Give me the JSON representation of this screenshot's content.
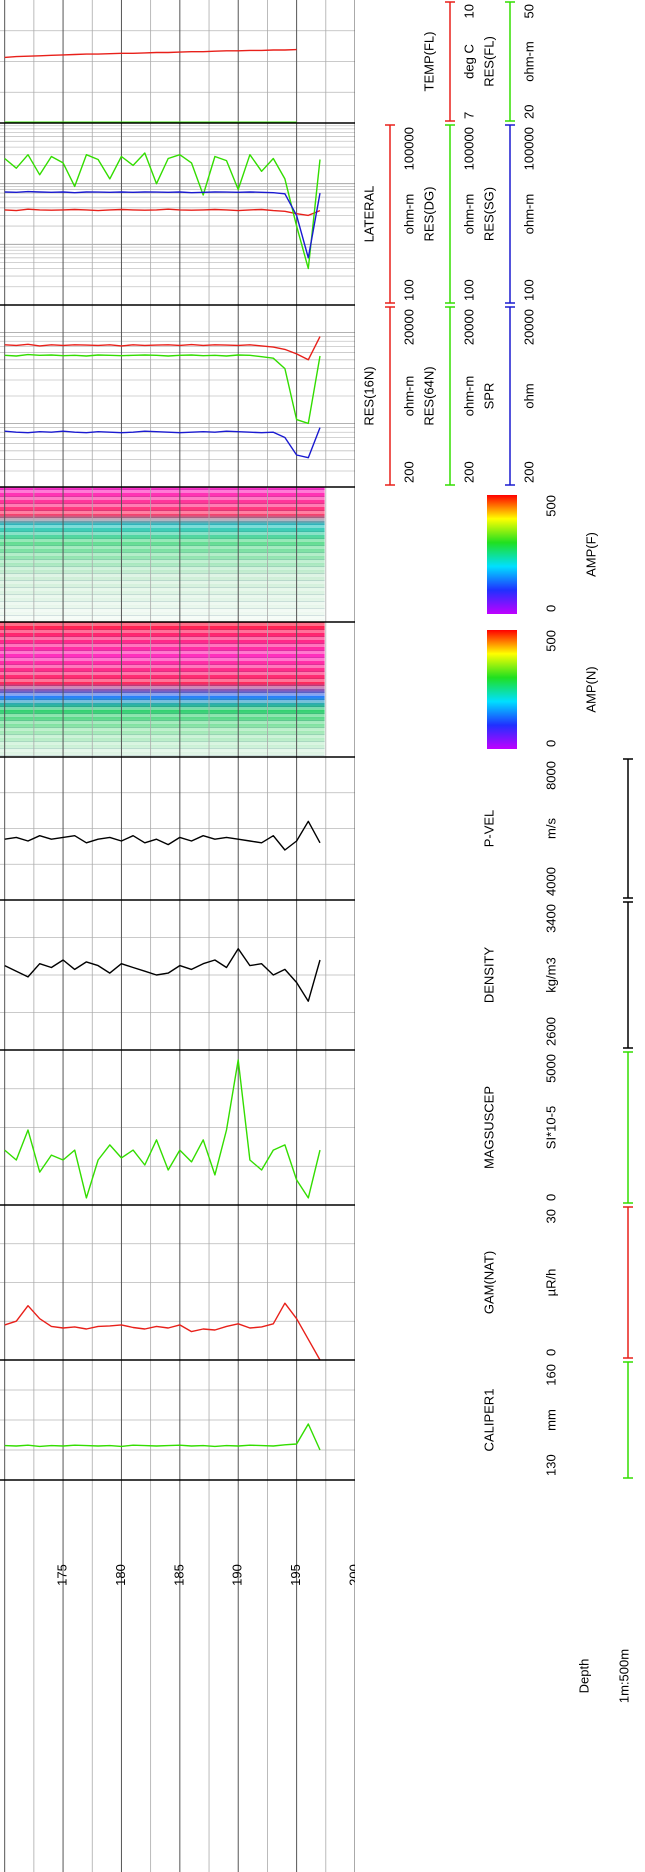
{
  "chart_data": {
    "type": "log",
    "depth_title": "Depth",
    "depth_scale": "1m:500m",
    "ylim": [
      169.6,
      200
    ],
    "yticks": [
      175,
      180,
      185,
      190,
      195,
      200
    ],
    "depth_grid": [
      170,
      172.5,
      175,
      177.5,
      180,
      182.5,
      185,
      187.5,
      190,
      192.5,
      195,
      197.5,
      200
    ],
    "depth": [
      170,
      171,
      172,
      173,
      174,
      175,
      176,
      177,
      178,
      179,
      180,
      181,
      182,
      183,
      184,
      185,
      186,
      187,
      188,
      189,
      190,
      191,
      192,
      193,
      194,
      195,
      196,
      197
    ],
    "tracks": [
      {
        "curves": [
          {
            "name": "CALIPER1",
            "unit": "mm",
            "color": "#33dd00",
            "xlim": [
              130,
              160
            ],
            "values": [
              138.6,
              138.5,
              138.7,
              138.4,
              138.6,
              138.5,
              138.7,
              138.6,
              138.5,
              138.6,
              138.4,
              138.7,
              138.6,
              138.5,
              138.6,
              138.7,
              138.5,
              138.6,
              138.4,
              138.6,
              138.5,
              138.7,
              138.6,
              138.5,
              138.8,
              139.0,
              144.0,
              137.5
            ]
          }
        ]
      },
      {
        "curves": [
          {
            "name": "GAM(NAT)",
            "unit": "µR/h",
            "color": "#e8201a",
            "xlim": [
              0,
              30
            ],
            "values": [
              6.8,
              7.5,
              10.5,
              8.0,
              6.5,
              6.2,
              6.4,
              6.0,
              6.5,
              6.6,
              6.8,
              6.3,
              6.0,
              6.5,
              6.2,
              6.8,
              5.5,
              6.0,
              5.8,
              6.5,
              7.0,
              6.2,
              6.4,
              7.0,
              11.0,
              8.0,
              4.0,
              0.0
            ]
          }
        ]
      },
      {
        "curves": [
          {
            "name": "MAGSUSCEP",
            "unit": "SI*10-5",
            "color": "#33dd00",
            "xlim": [
              0,
              5000
            ],
            "values": [
              1770,
              1450,
              2420,
              1060,
              1610,
              1450,
              1770,
              230,
              1450,
              1940,
              1520,
              1770,
              1290,
              2100,
              1130,
              1770,
              1390,
              2100,
              970,
              2420,
              4680,
              1450,
              1130,
              1770,
              1940,
              810,
              230,
              1770
            ]
          }
        ]
      },
      {
        "curves": [
          {
            "name": "DENSITY",
            "unit": "kg/m3",
            "color": "#000000",
            "xlim": [
              2600,
              3400
            ],
            "values": [
              3050,
              3020,
              2990,
              3060,
              3040,
              3080,
              3030,
              3070,
              3050,
              3010,
              3060,
              3040,
              3020,
              3000,
              3010,
              3050,
              3030,
              3060,
              3080,
              3040,
              3140,
              3050,
              3060,
              3000,
              3030,
              2960,
              2860,
              3080
            ]
          }
        ]
      },
      {
        "curves": [
          {
            "name": "P-VEL",
            "unit": "m/s",
            "color": "#000000",
            "xlim": [
              4000,
              8000
            ],
            "values": [
              5700,
              5750,
              5650,
              5800,
              5700,
              5750,
              5800,
              5600,
              5700,
              5750,
              5650,
              5800,
              5600,
              5700,
              5550,
              5750,
              5650,
              5800,
              5700,
              5750,
              5700,
              5650,
              5600,
              5800,
              5400,
              5650,
              6200,
              5600
            ]
          }
        ]
      },
      {
        "image": {
          "name": "AMP(N)",
          "xlim": [
            0,
            500
          ]
        }
      },
      {
        "image": {
          "name": "AMP(F)",
          "xlim": [
            0,
            500
          ]
        }
      },
      {
        "curves": [
          {
            "name": "RES(16N)",
            "unit": "ohm-m",
            "color": "#e8201a",
            "xlim": [
              200,
              20000
            ],
            "log": true,
            "values": [
              7300,
              7200,
              7400,
              7100,
              7300,
              7200,
              7300,
              7250,
              7200,
              7300,
              7100,
              7300,
              7200,
              7250,
              7300,
              7200,
              7350,
              7200,
              7300,
              7250,
              7200,
              7300,
              7100,
              6900,
              6500,
              5800,
              5000,
              9000
            ]
          },
          {
            "name": "RES(64N)",
            "unit": "ohm-m",
            "color": "#33dd00",
            "xlim": [
              200,
              20000
            ],
            "log": true,
            "values": [
              5600,
              5500,
              5700,
              5600,
              5650,
              5550,
              5600,
              5500,
              5650,
              5600,
              5550,
              5600,
              5650,
              5600,
              5500,
              5600,
              5650,
              5550,
              5600,
              5500,
              5650,
              5600,
              5400,
              5200,
              4000,
              1100,
              1000,
              5500
            ]
          },
          {
            "name": "SPR",
            "unit": "ohm",
            "color": "#1a1ad0",
            "xlim": [
              200,
              20000
            ],
            "log": true,
            "values": [
              820,
              800,
              790,
              810,
              800,
              820,
              800,
              790,
              810,
              800,
              790,
              800,
              820,
              810,
              800,
              790,
              800,
              810,
              800,
              820,
              810,
              800,
              790,
              800,
              700,
              450,
              420,
              900
            ]
          }
        ]
      },
      {
        "curves": [
          {
            "name": "LATERAL",
            "unit": "ohm-m",
            "color": "#e8201a",
            "xlim": [
              100,
              100000
            ],
            "log": true,
            "values": [
              3700,
              3600,
              3800,
              3700,
              3650,
              3700,
              3750,
              3700,
              3600,
              3700,
              3750,
              3700,
              3650,
              3700,
              3800,
              3700,
              3650,
              3700,
              3750,
              3700,
              3600,
              3700,
              3750,
              3600,
              3500,
              3200,
              3000,
              3600
            ]
          },
          {
            "name": "RES(DG)",
            "unit": "ohm-m",
            "color": "#33dd00",
            "xlim": [
              100,
              100000
            ],
            "log": true,
            "values": [
              26000,
              18000,
              30000,
              14000,
              28000,
              22000,
              9000,
              30000,
              25000,
              12000,
              28000,
              20000,
              32000,
              10000,
              26000,
              30000,
              22000,
              6500,
              28000,
              24000,
              8000,
              30000,
              16000,
              26000,
              12000,
              2000,
              400,
              25000
            ]
          },
          {
            "name": "RES(SG)",
            "unit": "ohm-m",
            "color": "#1a1ad0",
            "xlim": [
              100,
              100000
            ],
            "log": true,
            "values": [
              7300,
              7200,
              7400,
              7300,
              7200,
              7300,
              7100,
              7300,
              7250,
              7200,
              7300,
              7200,
              7300,
              7250,
              7200,
              7300,
              7100,
              7200,
              7300,
              7250,
              7200,
              7300,
              7200,
              7100,
              6800,
              3000,
              600,
              7000
            ]
          }
        ]
      },
      {
        "curves": [
          {
            "name": "TEMP(FL)",
            "unit": "deg C",
            "color": "#e8201a",
            "xlim": [
              7,
              10
            ],
            "values": [
              8.6,
              8.62,
              8.63,
              8.64,
              8.65,
              8.66,
              8.67,
              8.68,
              8.68,
              8.69,
              8.7,
              8.7,
              8.71,
              8.72,
              8.72,
              8.73,
              8.74,
              8.74,
              8.75,
              8.76,
              8.76,
              8.77,
              8.77,
              8.78,
              8.78,
              8.79,
              null,
              null
            ]
          },
          {
            "name": "RES(FL)",
            "unit": "ohm-m",
            "color": "#33dd00",
            "xlim": [
              20,
              50
            ],
            "values": [
              20.2,
              20.2,
              20.2,
              20.2,
              20.2,
              20.2,
              20.2,
              20.2,
              20.2,
              20.2,
              20.2,
              20.2,
              20.2,
              20.2,
              20.2,
              20.2,
              20.2,
              20.2,
              20.2,
              20.2,
              20.2,
              20.2,
              20.2,
              20.2,
              20.2,
              20.2,
              null,
              null
            ]
          }
        ]
      }
    ]
  }
}
